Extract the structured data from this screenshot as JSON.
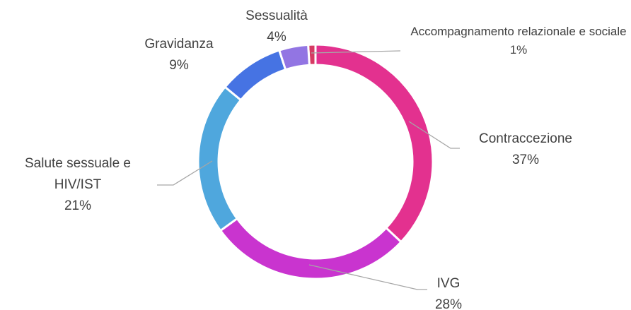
{
  "chart_data": {
    "type": "donut",
    "categories": [
      "Accompagnamento relazionale e sociale",
      "Contraccezione",
      "IVG",
      "Salute sessuale e HIV/IST",
      "Gravidanza",
      "Sessualità"
    ],
    "values": [
      1,
      37,
      28,
      21,
      9,
      4
    ],
    "value_labels": [
      "1%",
      "37%",
      "28%",
      "21%",
      "9%",
      "4%"
    ],
    "colors": [
      "#d63a63",
      "#e3318f",
      "#c934cf",
      "#4fa7dd",
      "#4673e3",
      "#9275e3"
    ]
  }
}
